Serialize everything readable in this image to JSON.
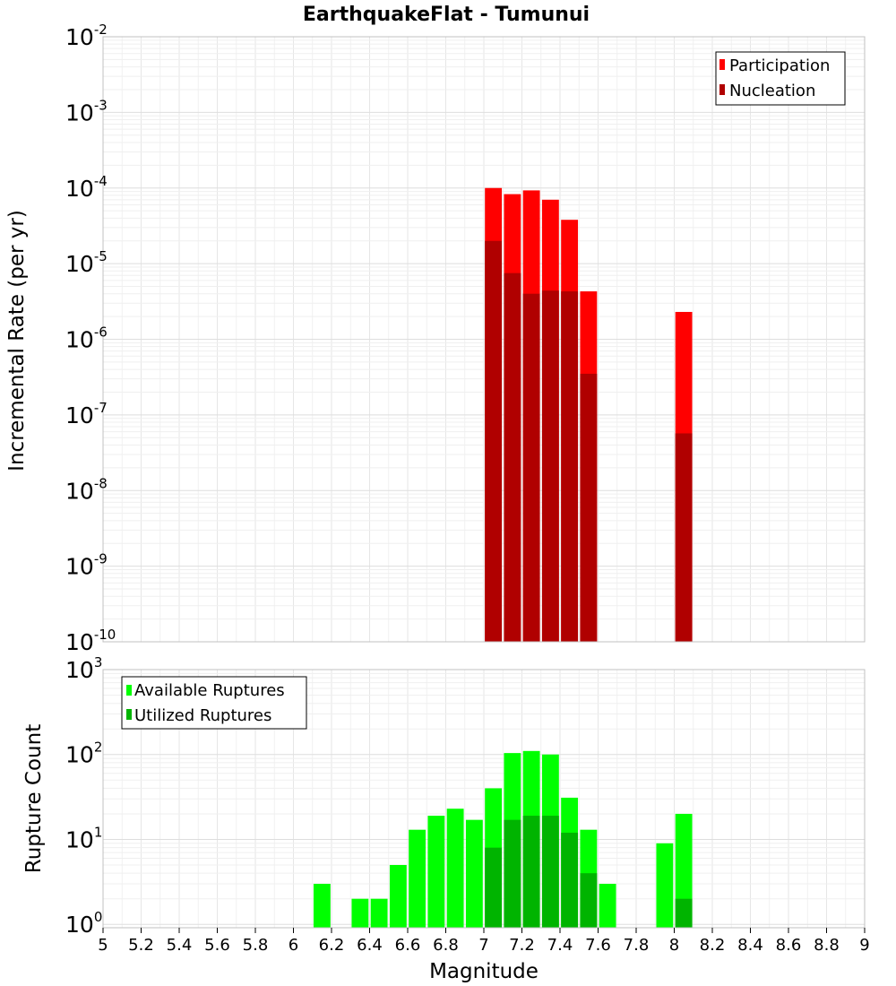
{
  "chart_data": {
    "type": "bar",
    "title": "EarthquakeFlat - Tumunui",
    "xlabel": "Magnitude",
    "xlim": [
      5,
      9
    ],
    "x_ticks": [
      "5",
      "5.2",
      "5.4",
      "5.6",
      "5.8",
      "6",
      "6.2",
      "6.4",
      "6.6",
      "6.8",
      "7",
      "7.2",
      "7.4",
      "7.6",
      "7.8",
      "8",
      "8.2",
      "8.4",
      "8.6",
      "8.8",
      "9"
    ],
    "bin_width": 0.1,
    "panels": [
      {
        "id": "rates",
        "ylabel": "Incremental Rate (per yr)",
        "yscale": "log",
        "ylim_exp": [
          -10,
          -2
        ],
        "y_ticks": [
          {
            "base": "10",
            "exp": "-2"
          },
          {
            "base": "10",
            "exp": "-3"
          },
          {
            "base": "10",
            "exp": "-4"
          },
          {
            "base": "10",
            "exp": "-5"
          },
          {
            "base": "10",
            "exp": "-6"
          },
          {
            "base": "10",
            "exp": "-7"
          },
          {
            "base": "10",
            "exp": "-8"
          },
          {
            "base": "10",
            "exp": "-9"
          },
          {
            "base": "10",
            "exp": "-10"
          }
        ],
        "legend": [
          "Participation",
          "Nucleation"
        ],
        "series": [
          {
            "name": "Participation",
            "color": "#ff0000",
            "x": [
              7.05,
              7.15,
              7.25,
              7.35,
              7.45,
              7.55,
              8.05
            ],
            "values": [
              0.0001,
              8.3e-05,
              9.3e-05,
              7e-05,
              3.8e-05,
              4.3e-06,
              2.3e-06
            ]
          },
          {
            "name": "Nucleation",
            "color": "#b00000",
            "x": [
              7.05,
              7.15,
              7.25,
              7.35,
              7.45,
              7.55,
              8.05
            ],
            "values": [
              2e-05,
              7.5e-06,
              4e-06,
              4.4e-06,
              4.3e-06,
              3.5e-07,
              5.7e-08
            ]
          }
        ]
      },
      {
        "id": "counts",
        "ylabel": "Rupture Count",
        "yscale": "log",
        "ylim_exp": [
          -0.04,
          3
        ],
        "y_ticks": [
          {
            "base": "10",
            "exp": "3"
          },
          {
            "base": "10",
            "exp": "2"
          },
          {
            "base": "10",
            "exp": "1"
          },
          {
            "base": "10",
            "exp": "0"
          }
        ],
        "legend": [
          "Available Ruptures",
          "Utilized Ruptures"
        ],
        "series": [
          {
            "name": "Available Ruptures",
            "color": "#00ff00",
            "x": [
              6.15,
              6.35,
              6.45,
              6.55,
              6.65,
              6.75,
              6.85,
              6.95,
              7.05,
              7.15,
              7.25,
              7.35,
              7.45,
              7.55,
              7.65,
              7.95,
              8.05
            ],
            "values": [
              3,
              2,
              2,
              5,
              13,
              19,
              23,
              17,
              40,
              104,
              110,
              100,
              31,
              13,
              3,
              9,
              20
            ]
          },
          {
            "name": "Utilized Ruptures",
            "color": "#00b400",
            "x": [
              7.05,
              7.15,
              7.25,
              7.35,
              7.45,
              7.55,
              8.05
            ],
            "values": [
              8,
              17,
              19,
              19,
              12,
              4,
              2
            ]
          }
        ]
      }
    ]
  }
}
